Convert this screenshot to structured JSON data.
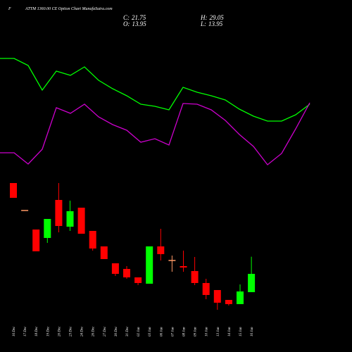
{
  "chart_data": [
    {
      "type": "line",
      "series": [
        {
          "color": "#00ff00",
          "values": [
            113.55,
            113.55,
            110.55,
            100.05,
            108.15,
            106.35,
            109.95,
            104.25,
            100.65,
            97.65,
            94.05,
            93.15,
            91.65,
            101.25,
            99.15,
            97.65,
            95.85,
            91.95,
            88.95,
            86.85,
            86.85,
            89.55,
            94.05
          ]
        },
        {
          "color": "#cc00cc",
          "values": [
            73.35,
            73.35,
            68.55,
            74.85,
            92.55,
            90.15,
            94.05,
            88.65,
            85.35,
            82.95,
            77.85,
            79.35,
            76.65,
            94.35,
            94.05,
            91.65,
            87.15,
            81.15,
            76.05,
            68.25,
            73.05,
            83.55,
            94.65
          ]
        }
      ]
    },
    {
      "type": "candlestick",
      "title": "ATTM 1360.00 CE Option Chart MunafaSutra.com",
      "corner_label": "F",
      "stats": [
        {
          "label": "C:",
          "value": 21.75
        },
        {
          "label": "H:",
          "value": 29.05
        },
        {
          "label": "O:",
          "value": 13.95
        },
        {
          "label": "L:",
          "value": 13.95
        }
      ],
      "up_color": "#00ff00",
      "down_color": "#ff0000",
      "flat_color": "#ff9966",
      "categories": [
        "16 Dec",
        "17 Dec",
        "18 Dec",
        "19 Dec",
        "20 Dec",
        "23 Dec",
        "24 Dec",
        "26 Dec",
        "27 Dec",
        "30 Dec",
        "31 Dec",
        "02 Jan",
        "03 Jan",
        "06 Jan",
        "07 Jan",
        "08 Jan",
        "09 Jan",
        "10 Jan",
        "13 Jan",
        "14 Jan",
        "15 Jan",
        "16 Jan"
      ],
      "open": [
        60.45,
        48.75,
        40.65,
        37.05,
        53.25,
        41.85,
        49.95,
        40.05,
        33.45,
        26.25,
        23.85,
        20.25,
        17.55,
        33.45,
        27.45,
        25.05,
        22.95,
        17.85,
        14.85,
        10.65,
        8.85,
        13.95
      ],
      "high": [
        60.45,
        48.75,
        40.65,
        45.15,
        60.45,
        52.95,
        49.95,
        40.05,
        33.45,
        26.25,
        25.05,
        20.25,
        33.45,
        40.95,
        29.55,
        31.65,
        28.95,
        19.65,
        14.85,
        10.65,
        17.25,
        29.05
      ],
      "low": [
        54.15,
        48.75,
        31.35,
        34.95,
        39.45,
        40.05,
        38.85,
        31.65,
        28.05,
        20.85,
        19.65,
        16.95,
        17.55,
        27.45,
        22.65,
        22.65,
        16.95,
        10.95,
        6.45,
        8.25,
        8.85,
        13.95
      ],
      "close": [
        54.15,
        48.75,
        31.35,
        45.15,
        42.15,
        48.45,
        38.85,
        32.55,
        28.05,
        21.75,
        20.25,
        17.85,
        33.45,
        30.15,
        27.45,
        24.45,
        17.85,
        12.75,
        9.45,
        8.85,
        14.25,
        21.75
      ]
    }
  ]
}
